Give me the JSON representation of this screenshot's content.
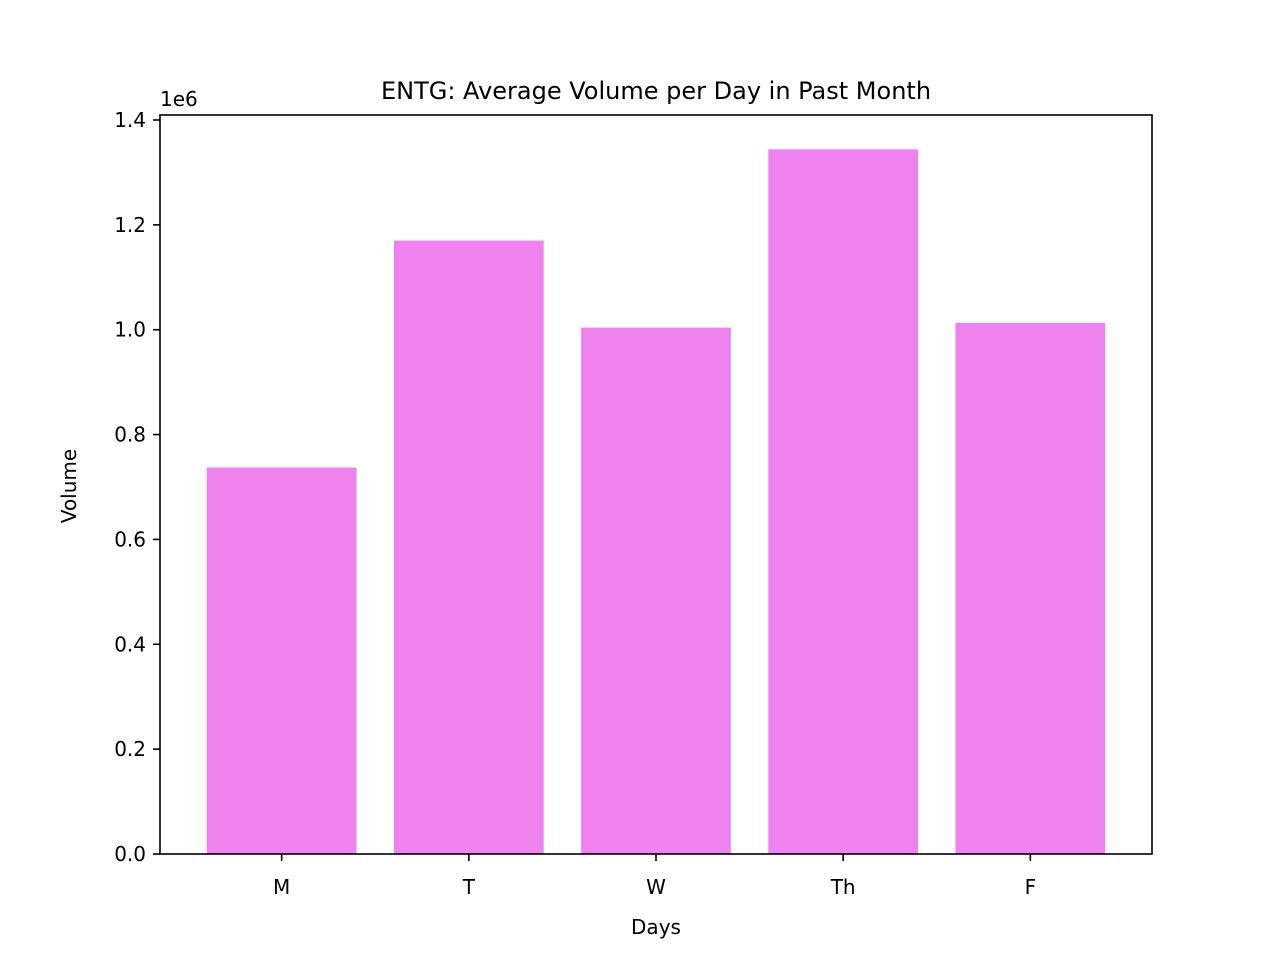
{
  "chart_data": {
    "type": "bar",
    "title": "ENTG: Average Volume per Day in Past Month",
    "xlabel": "Days",
    "ylabel": "Volume",
    "offset_label": "1e6",
    "categories": [
      "M",
      "T",
      "W",
      "Th",
      "F"
    ],
    "values": [
      737000,
      1170000,
      1004000,
      1344000,
      1013000
    ],
    "ylim": [
      0,
      1400000
    ],
    "yticks": [
      0,
      200000,
      400000,
      600000,
      800000,
      1000000,
      1200000,
      1400000
    ],
    "ytick_labels": [
      "0.0",
      "0.2",
      "0.4",
      "0.6",
      "0.8",
      "1.0",
      "1.2",
      "1.4"
    ],
    "bar_color": "#EE82EE",
    "grid": false,
    "legend": "none"
  }
}
